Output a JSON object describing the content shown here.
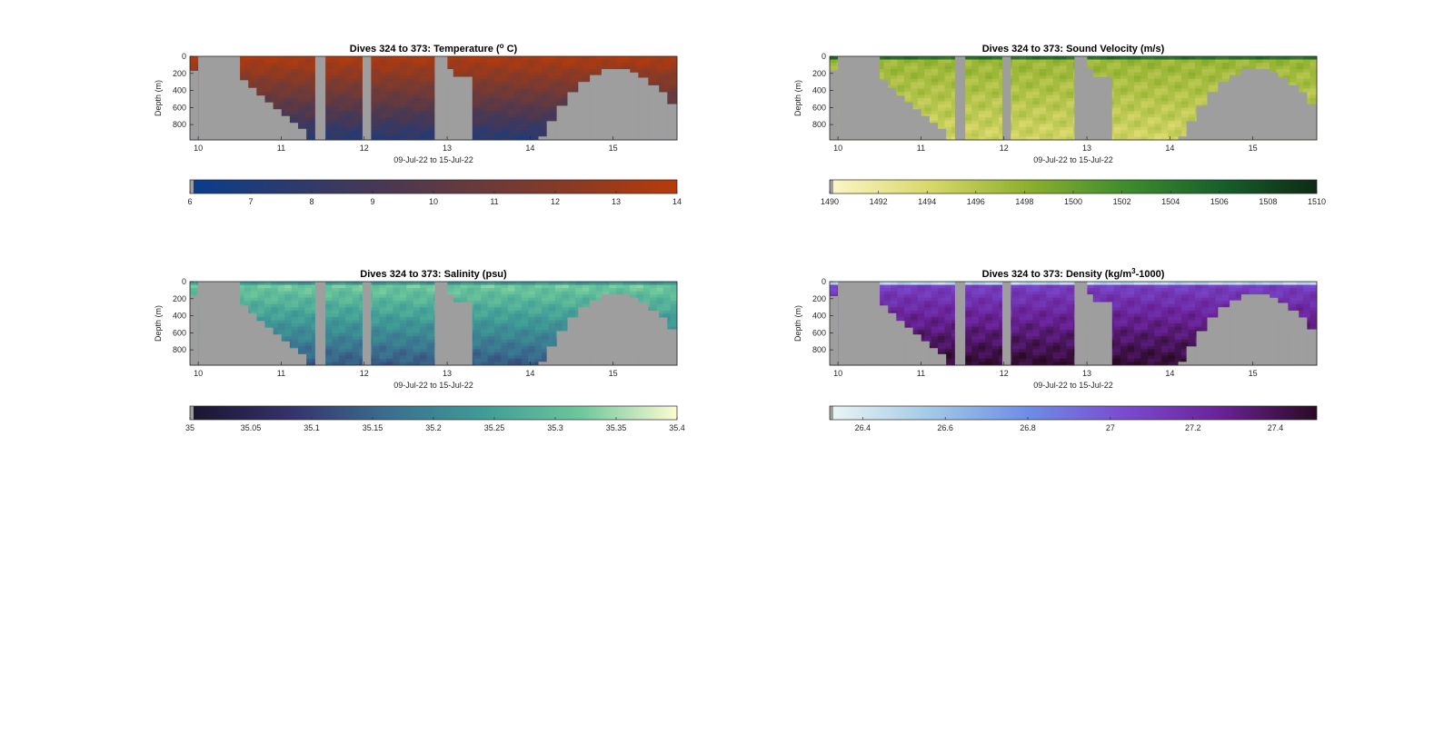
{
  "chart_data": [
    {
      "type": "heatmap",
      "title": "Dives 324 to 373: Temperature (",
      "title_sup": "o",
      "title_end": " C)",
      "xlabel": "09-Jul-22 to 15-Jul-22",
      "ylabel": "Depth (m)",
      "x_ticks": [
        "10",
        "11",
        "12",
        "13",
        "14",
        "15"
      ],
      "y_ticks": [
        "0",
        "200",
        "400",
        "600",
        "800"
      ],
      "xlim": [
        9.9,
        15.77
      ],
      "ylim": [
        0,
        980
      ],
      "colorbar_ticks": [
        "6",
        "7",
        "8",
        "9",
        "10",
        "11",
        "12",
        "13",
        "14"
      ],
      "clim": [
        6,
        14
      ],
      "colors": [
        "#0a3d8c",
        "#2c3a6e",
        "#4a3852",
        "#6b3a3a",
        "#8e3a22",
        "#b83a0a"
      ]
    },
    {
      "type": "heatmap",
      "title": "Dives 324 to 373: Sound Velocity (m/s)",
      "title_sup": "",
      "title_end": "",
      "xlabel": "09-Jul-22 to 15-Jul-22",
      "ylabel": "Depth (m)",
      "x_ticks": [
        "10",
        "11",
        "12",
        "13",
        "14",
        "15"
      ],
      "y_ticks": [
        "0",
        "200",
        "400",
        "600",
        "800"
      ],
      "xlim": [
        9.9,
        15.77
      ],
      "ylim": [
        0,
        980
      ],
      "colorbar_ticks": [
        "1490",
        "1492",
        "1494",
        "1496",
        "1498",
        "1500",
        "1502",
        "1504",
        "1506",
        "1508",
        "1510"
      ],
      "clim": [
        1490,
        1510
      ],
      "colors": [
        "#fbf5c4",
        "#d8d86a",
        "#8fb02e",
        "#3f8e2c",
        "#17602c",
        "#0f2a14"
      ]
    },
    {
      "type": "heatmap",
      "title": "Dives 324 to 373: Salinity (psu)",
      "title_sup": "",
      "title_end": "",
      "xlabel": "09-Jul-22 to 15-Jul-22",
      "ylabel": "Depth (m)",
      "x_ticks": [
        "10",
        "11",
        "12",
        "13",
        "14",
        "15"
      ],
      "y_ticks": [
        "0",
        "200",
        "400",
        "600",
        "800"
      ],
      "xlim": [
        9.9,
        15.77
      ],
      "ylim": [
        0,
        980
      ],
      "colorbar_ticks": [
        "35",
        "35.05",
        "35.1",
        "35.15",
        "35.2",
        "35.25",
        "35.3",
        "35.35",
        "35.4"
      ],
      "clim": [
        35,
        35.4
      ],
      "colors": [
        "#1a1530",
        "#35326b",
        "#3a6e8f",
        "#3f9c96",
        "#6cc79b",
        "#fdfbd2"
      ]
    },
    {
      "type": "heatmap",
      "title": "Dives 324 to 373: Density (kg/m",
      "title_sup": "3",
      "title_end": "-1000)",
      "xlabel": "09-Jul-22 to 15-Jul-22",
      "ylabel": "Depth (m)",
      "x_ticks": [
        "10",
        "11",
        "12",
        "13",
        "14",
        "15"
      ],
      "y_ticks": [
        "0",
        "200",
        "400",
        "600",
        "800"
      ],
      "xlim": [
        9.9,
        15.77
      ],
      "ylim": [
        0,
        980
      ],
      "colorbar_ticks": [
        "26.4",
        "26.6",
        "26.8",
        "27",
        "27.2",
        "27.4"
      ],
      "clim": [
        26.32,
        27.5
      ],
      "colors": [
        "#e8f4f4",
        "#a3c9e6",
        "#6d8ee6",
        "#7a4bd1",
        "#6a2298",
        "#2a0a22"
      ]
    }
  ]
}
